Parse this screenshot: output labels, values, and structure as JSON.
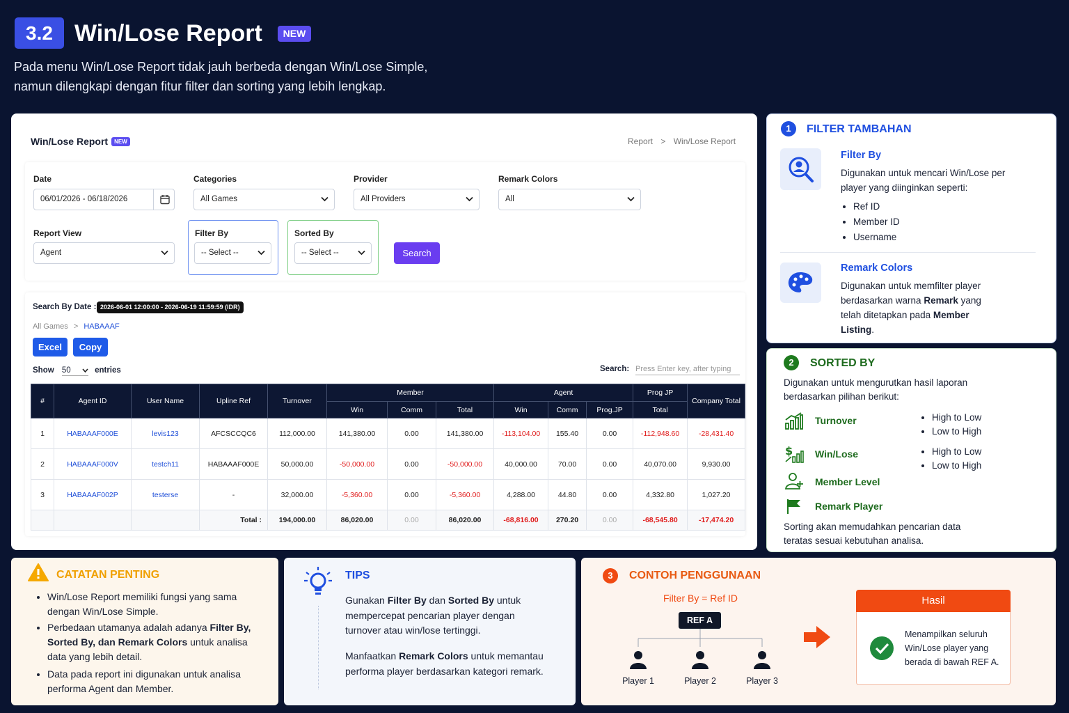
{
  "header": {
    "number": "3.2",
    "title": "Win/Lose Report",
    "badge": "NEW",
    "description": [
      "Pada menu Win/Lose Report tidak jauh berbeda dengan Win/Lose Simple,",
      "namun dilengkapi dengan fitur filter dan sorting yang lebih lengkap."
    ]
  },
  "report": {
    "title": "Win/Lose Report",
    "badge": "NEW",
    "breadcrumb": [
      "Report",
      "Win/Lose Report"
    ],
    "filters": [
      {
        "label": "Date",
        "value": "06/01/2026 - 06/18/2026"
      },
      {
        "label": "Categories",
        "value": "All Games"
      },
      {
        "label": "Provider",
        "value": "All Providers"
      },
      {
        "label": "Remark Colors",
        "value": "All"
      },
      {
        "label": "Report View",
        "value": "Agent"
      },
      {
        "label": "Filter By",
        "value": "-- Select --"
      },
      {
        "label": "Sorted By",
        "value": "-- Select --"
      }
    ],
    "search_button": "Search",
    "search_by_date": {
      "label": "Search By Date :",
      "value": "2026-06-01 12:00:00 - 2026-06-19 11:59:59 (IDR)"
    },
    "path": [
      "All Games",
      "HABAAAF"
    ],
    "buttons": [
      "Excel",
      "Copy"
    ],
    "length": {
      "show": "Show",
      "value": "50",
      "entries": "entries"
    },
    "search": {
      "label": "Search:",
      "placeholder": "Press Enter key, after typing"
    },
    "table": {
      "header_top": [
        "#",
        "Agent ID",
        "User Name",
        "Upline Ref",
        "Turnover",
        "Member",
        "Agent",
        "Prog JP",
        "Company Total"
      ],
      "header_sub": [
        "Win",
        "Comm",
        "Total",
        "Win",
        "Comm",
        "Prog.JP",
        "Total"
      ],
      "rows": [
        [
          "1",
          "HABAAAF000E",
          "levis123",
          "AFCSCCQC6",
          "112,000.00",
          "141,380.00",
          "0.00",
          "141,380.00",
          "-113,104.00",
          "155.40",
          "0.00",
          "-112,948.60",
          "-28,431.40"
        ],
        [
          "2",
          "HABAAAF000V",
          "testch11",
          "HABAAAF000E",
          "50,000.00",
          "-50,000.00",
          "0.00",
          "-50,000.00",
          "40,000.00",
          "70.00",
          "0.00",
          "40,070.00",
          "9,930.00"
        ],
        [
          "3",
          "HABAAAF002P",
          "testerse",
          "-",
          "32,000.00",
          "-5,360.00",
          "0.00",
          "-5,360.00",
          "4,288.00",
          "44.80",
          "0.00",
          "4,332.80",
          "1,027.20"
        ]
      ],
      "total_label": "Total :",
      "totals": [
        "194,000.00",
        "86,020.00",
        "0.00",
        "86,020.00",
        "-68,816.00",
        "270.20",
        "0.00",
        "-68,545.80",
        "-17,474.20"
      ]
    }
  },
  "filter_panel": {
    "number": "1",
    "title": "FILTER TAMBAHAN",
    "items": [
      {
        "title": "Filter By",
        "text": [
          "Digunakan untuk mencari Win/Lose per player yang diinginkan seperti:"
        ],
        "bullets": [
          "Ref ID",
          "Member ID",
          "Username"
        ]
      },
      {
        "title": "Remark Colors",
        "text": [
          "Digunakan untuk memfilter player berdasarkan warna ",
          {
            "text": "Remark",
            "bold": true
          },
          " yang telah ditetapkan pada ",
          {
            "text": "Member Listing",
            "bold": true
          },
          "."
        ]
      }
    ]
  },
  "sort_panel": {
    "number": "2",
    "title": "SORTED BY",
    "intro": "Digunakan untuk mengurutkan hasil laporan berdasarkan pilihan berikut:",
    "items": [
      {
        "label": "Turnover",
        "options": [
          "High to Low",
          "Low to High"
        ]
      },
      {
        "label": "Win/Lose",
        "options": [
          "High to Low",
          "Low to High"
        ]
      },
      {
        "label": "Member Level"
      },
      {
        "label": "Remark Player"
      }
    ],
    "footer": "Sorting akan memudahkan pencarian data teratas sesuai kebutuhan analisa."
  },
  "notes": {
    "title": "CATATAN PENTING",
    "items": [
      [
        "Win/Lose Report memiliki fungsi yang sama dengan Win/Lose Simple."
      ],
      [
        "Perbedaan utamanya adalah adanya ",
        {
          "text": "Filter By, Sorted By, dan Remark Colors",
          "bold": true
        },
        " untuk analisa data yang lebih detail."
      ],
      [
        "Data pada report ini digunakan untuk analisa performa Agent dan Member."
      ]
    ]
  },
  "tips": {
    "title": "TIPS",
    "paragraphs": [
      [
        "Gunakan ",
        {
          "text": "Filter By",
          "bold": true
        },
        " dan ",
        {
          "text": "Sorted By",
          "bold": true
        },
        " untuk mempercepat pencarian player dengan turnover atau win/lose tertinggi."
      ],
      [
        "Manfaatkan ",
        {
          "text": "Remark Colors",
          "bold": true
        },
        " untuk memantau performa player berdasarkan kategori remark."
      ]
    ]
  },
  "example": {
    "number": "3",
    "title": "CONTOH PENGGUNAAN",
    "filter": "Filter By = Ref ID",
    "root": "REF A",
    "players": [
      "Player 1",
      "Player 2",
      "Player 3"
    ],
    "result_title": "Hasil",
    "result_text": "Menampilkan seluruh Win/Lose player yang berada di bawah REF A."
  }
}
